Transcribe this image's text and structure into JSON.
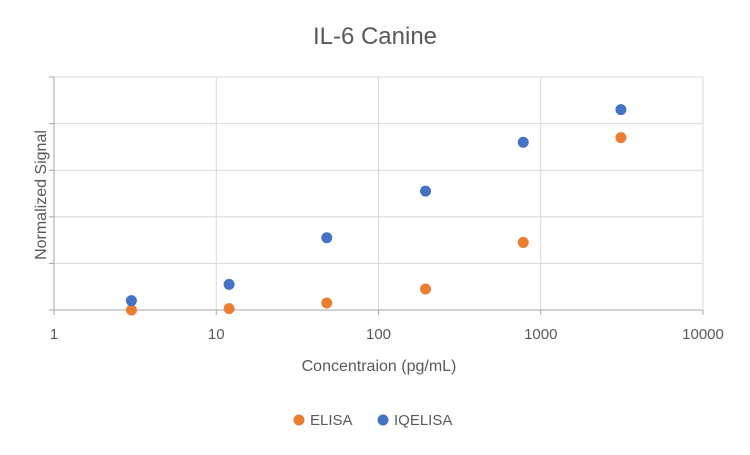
{
  "chart_data": {
    "type": "scatter",
    "title": "IL-6 Canine",
    "xlabel": "Concentraion (pg/mL)",
    "ylabel": "Normalized Signal",
    "xscale": "log",
    "xlim": [
      1,
      10000
    ],
    "ylim": [
      0,
      5
    ],
    "x_ticks": [
      1,
      10,
      100,
      1000,
      10000
    ],
    "x_tick_labels": [
      "1",
      "10",
      "100",
      "1000",
      "10000"
    ],
    "y_ticks": [
      0,
      1,
      2,
      3,
      4,
      5
    ],
    "grid": true,
    "legend_position": "bottom",
    "series": [
      {
        "name": "ELISA",
        "color": "#ED7D31",
        "points": [
          {
            "x": 3,
            "y": 0.0
          },
          {
            "x": 12,
            "y": 0.03
          },
          {
            "x": 48,
            "y": 0.15
          },
          {
            "x": 195,
            "y": 0.45
          },
          {
            "x": 780,
            "y": 1.45
          },
          {
            "x": 3120,
            "y": 3.7
          }
        ]
      },
      {
        "name": "IQELISA",
        "color": "#4472C4",
        "points": [
          {
            "x": 3,
            "y": 0.2
          },
          {
            "x": 12,
            "y": 0.55
          },
          {
            "x": 48,
            "y": 1.55
          },
          {
            "x": 195,
            "y": 2.55
          },
          {
            "x": 780,
            "y": 3.6
          },
          {
            "x": 3120,
            "y": 4.3
          }
        ]
      }
    ]
  }
}
